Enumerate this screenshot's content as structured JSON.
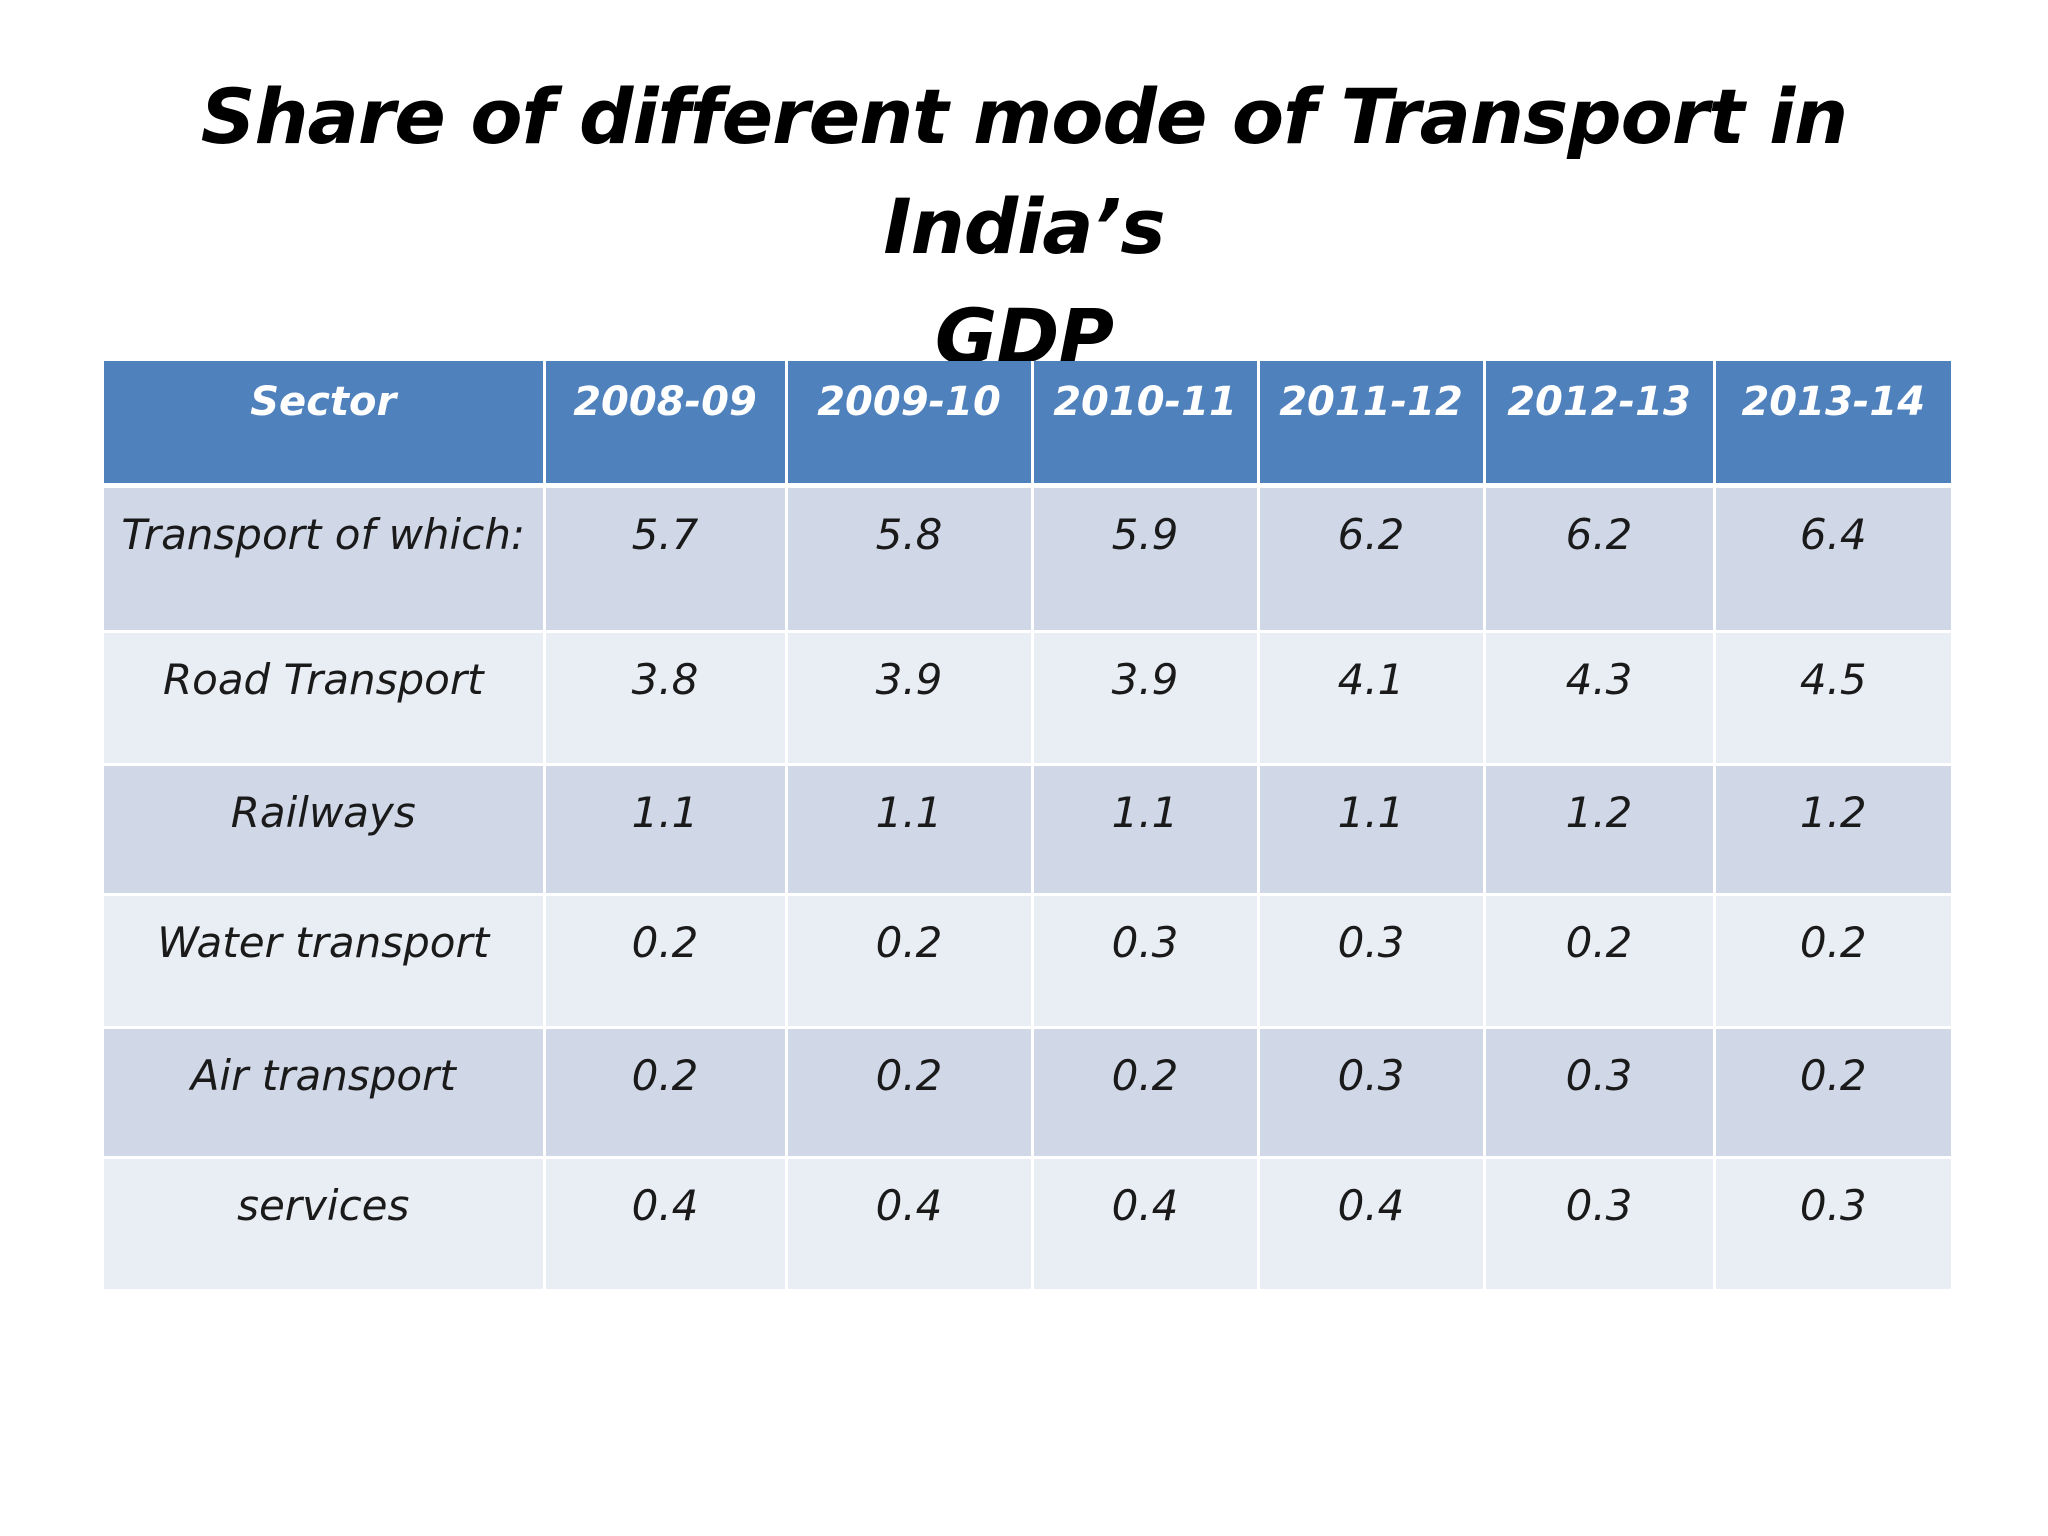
{
  "title": {
    "line1": "Share of  different mode of Transport in India’s",
    "line2": "GDP"
  },
  "table": {
    "headers": [
      "Sector",
      "2008-09",
      "2009-10",
      "2010-11",
      "2011-12",
      "2012-13",
      "2013-14"
    ],
    "rows": [
      [
        "Transport of which:",
        "5.7",
        "5.8",
        "5.9",
        "6.2",
        "6.2",
        "6.4"
      ],
      [
        "Road Transport",
        "3.8",
        "3.9",
        "3.9",
        "4.1",
        "4.3",
        "4.5"
      ],
      [
        "Railways",
        "1.1",
        "1.1",
        "1.1",
        "1.1",
        "1.2",
        "1.2"
      ],
      [
        "Water transport",
        "0.2",
        "0.2",
        "0.3",
        "0.3",
        "0.2",
        "0.2"
      ],
      [
        "Air transport",
        "0.2",
        "0.2",
        "0.2",
        "0.3",
        "0.3",
        "0.2"
      ],
      [
        "services",
        "0.4",
        "0.4",
        "0.4",
        "0.4",
        "0.3",
        "0.3"
      ]
    ]
  },
  "colors": {
    "header_bg": "#4f81bd",
    "row_band_dark": "#d0d8e8",
    "row_band_light": "#e9edf4"
  }
}
